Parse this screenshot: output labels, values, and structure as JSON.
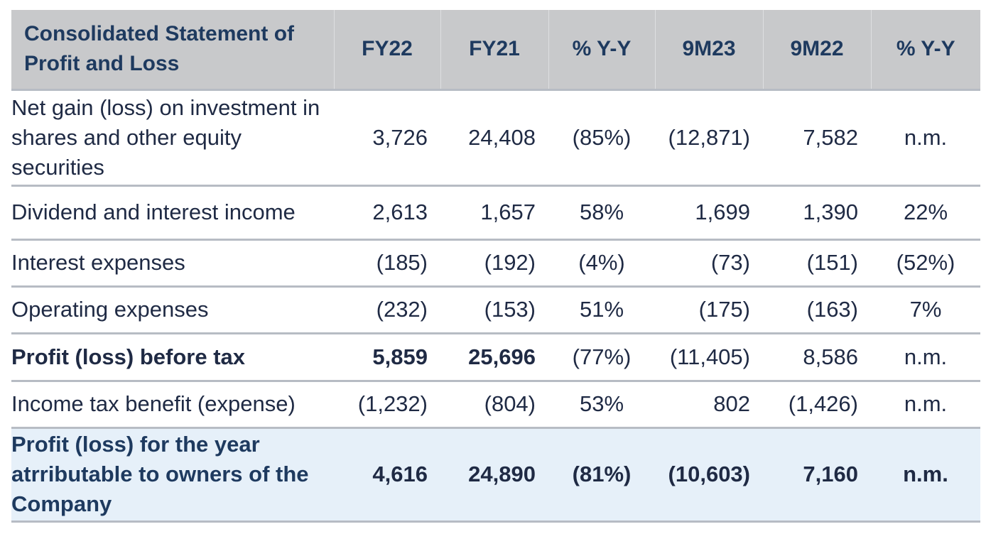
{
  "header": {
    "title": "Consolidated Statement of Profit and Loss",
    "columns": [
      "FY22",
      "FY21",
      "% Y-Y",
      "9M23",
      "9M22",
      "% Y-Y"
    ]
  },
  "rows": [
    {
      "label": "Net gain (loss) on investment in shares and other equity securities",
      "values": [
        "3,726",
        "24,408",
        "(85%)",
        "(12,871)",
        "7,582",
        "n.m."
      ]
    },
    {
      "label": "Dividend and interest income",
      "values": [
        "2,613",
        "1,657",
        "58%",
        "1,699",
        "1,390",
        "22%"
      ]
    },
    {
      "label": "Interest expenses",
      "values": [
        "(185)",
        "(192)",
        "(4%)",
        "(73)",
        "(151)",
        "(52%)"
      ]
    },
    {
      "label": "Operating expenses",
      "values": [
        "(232)",
        "(153)",
        "51%",
        "(175)",
        "(163)",
        "7%"
      ]
    },
    {
      "label": "Profit (loss) before tax",
      "values": [
        "5,859",
        "25,696",
        "(77%)",
        "(11,405)",
        "8,586",
        "n.m."
      ]
    },
    {
      "label": "Income tax benefit (expense)",
      "values": [
        "(1,232)",
        "(804)",
        "53%",
        "802",
        "(1,426)",
        "n.m."
      ]
    },
    {
      "label": "Profit (loss) for the year atrributable to owners of the Company",
      "values": [
        "4,616",
        "24,890",
        "(81%)",
        "(10,603)",
        "7,160",
        "n.m."
      ]
    }
  ],
  "colors": {
    "header_bg": "#c8c9cb",
    "header_text": "#1e3a5f",
    "total_row_bg": "#e6f0f9",
    "row_divider": "#b7bcc4"
  }
}
